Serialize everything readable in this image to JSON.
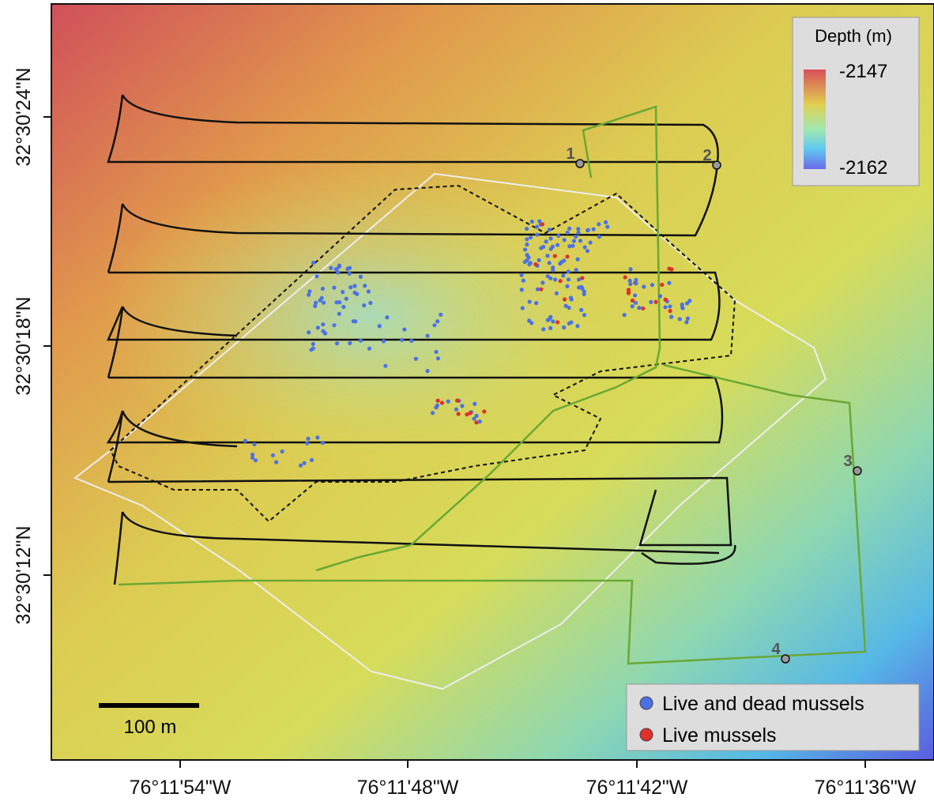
{
  "map": {
    "depth_legend": {
      "title": "Depth (m)",
      "max": -2147,
      "min": -2162
    },
    "x_ticks": [
      "76°11'54\"W",
      "76°11'48\"W",
      "76°11'42\"W",
      "76°11'36\"W"
    ],
    "y_ticks": [
      "32°30'24\"N",
      "32°30'18\"N",
      "32°30'12\"N"
    ],
    "scale_bar": "100 m",
    "markers": [
      "1",
      "2",
      "3",
      "4"
    ],
    "legend": [
      {
        "label": "Live and dead mussels",
        "color": "#4a72e6"
      },
      {
        "label": "Live mussels",
        "color": "#e0302c"
      }
    ]
  }
}
